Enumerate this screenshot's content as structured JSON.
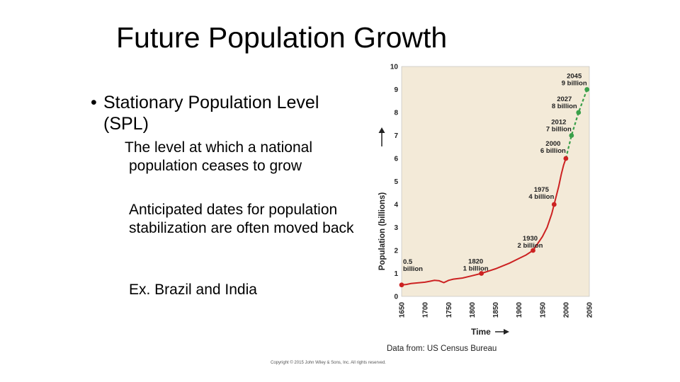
{
  "slide": {
    "title": "Future Population Growth",
    "bullet": "Stationary Population Level (SPL)",
    "definition_line1": "The level at which a national",
    "definition_line2": "population ceases to grow",
    "point2": "Anticipated dates for population stabilization are often moved back",
    "point3": "Ex. Brazil and India",
    "copyright": "Copyright © 2015 John Wiley & Sons, Inc. All rights reserved."
  },
  "chart_data": {
    "type": "line",
    "ylabel": "Population (billions)",
    "xlabel": "Time",
    "source": "Data from: US Census Bureau",
    "xlim": [
      1650,
      2050
    ],
    "ylim": [
      0,
      10
    ],
    "x_ticks": [
      1650,
      1700,
      1750,
      1800,
      1850,
      1900,
      1950,
      2000,
      2050
    ],
    "y_ticks": [
      0,
      1,
      2,
      3,
      4,
      5,
      6,
      7,
      8,
      9,
      10
    ],
    "colors": {
      "background": "#f3ead8",
      "actual": "#cc2222",
      "projected": "#3aa04a"
    },
    "actual_curve": [
      [
        1650,
        0.5
      ],
      [
        1660,
        0.52
      ],
      [
        1670,
        0.56
      ],
      [
        1680,
        0.58
      ],
      [
        1690,
        0.6
      ],
      [
        1700,
        0.62
      ],
      [
        1710,
        0.66
      ],
      [
        1720,
        0.7
      ],
      [
        1730,
        0.68
      ],
      [
        1740,
        0.6
      ],
      [
        1750,
        0.7
      ],
      [
        1760,
        0.75
      ],
      [
        1780,
        0.8
      ],
      [
        1800,
        0.9
      ],
      [
        1820,
        1.0
      ],
      [
        1850,
        1.2
      ],
      [
        1880,
        1.45
      ],
      [
        1900,
        1.65
      ],
      [
        1915,
        1.8
      ],
      [
        1930,
        2.0
      ],
      [
        1940,
        2.3
      ],
      [
        1950,
        2.6
      ],
      [
        1960,
        3.0
      ],
      [
        1970,
        3.6
      ],
      [
        1975,
        4.0
      ],
      [
        1985,
        4.8
      ],
      [
        1990,
        5.3
      ],
      [
        1995,
        5.7
      ],
      [
        2000,
        6.0
      ]
    ],
    "projected_curve": [
      [
        2000,
        6.0
      ],
      [
        2012,
        7.0
      ],
      [
        2027,
        8.0
      ],
      [
        2045,
        9.0
      ]
    ],
    "annotations": [
      {
        "year": 1650,
        "value": 0.5,
        "line1": "0.5",
        "line2": "billion",
        "kind": "actual"
      },
      {
        "year": 1820,
        "value": 1,
        "line1": "1820",
        "line2": "1 billion",
        "kind": "actual"
      },
      {
        "year": 1930,
        "value": 2,
        "line1": "1930",
        "line2": "2 billion",
        "kind": "actual"
      },
      {
        "year": 1975,
        "value": 4,
        "line1": "1975",
        "line2": "4 billion",
        "kind": "actual"
      },
      {
        "year": 2000,
        "value": 6,
        "line1": "2000",
        "line2": "6 billion",
        "kind": "actual"
      },
      {
        "year": 2012,
        "value": 7,
        "line1": "2012",
        "line2": "7 billion",
        "kind": "projected"
      },
      {
        "year": 2027,
        "value": 8,
        "line1": "2027",
        "line2": "8 billion",
        "kind": "projected"
      },
      {
        "year": 2045,
        "value": 9,
        "line1": "2045",
        "line2": "9 billion",
        "kind": "projected"
      }
    ]
  }
}
